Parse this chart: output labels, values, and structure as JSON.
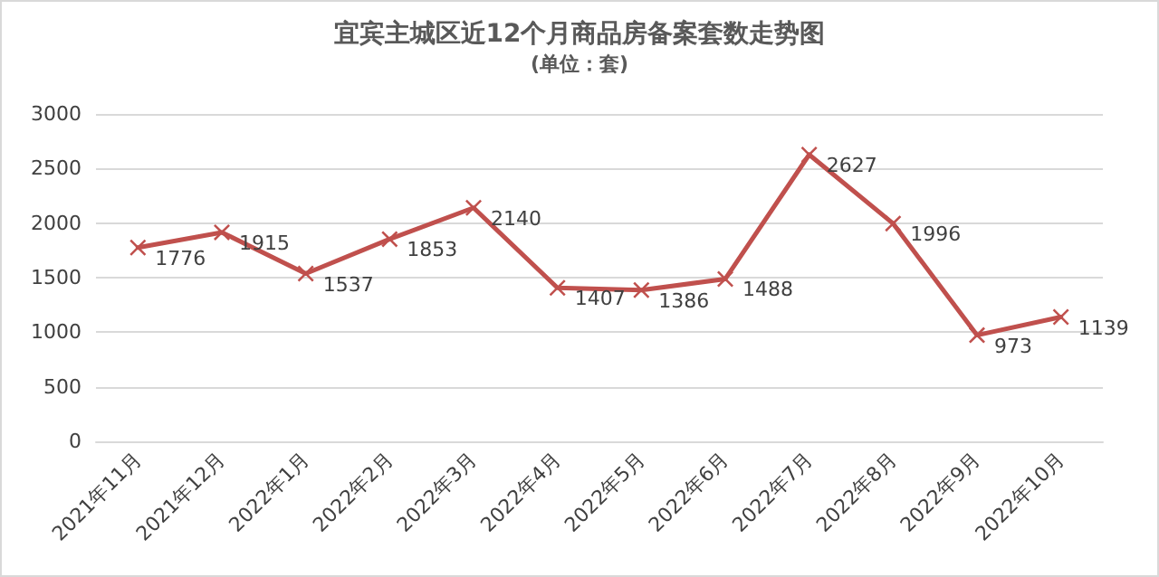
{
  "chart_data": {
    "type": "line",
    "title": "宜宾主城区近12个月商品房备案套数走势图",
    "subtitle": "(单位：套)",
    "categories": [
      "2021年11月",
      "2021年12月",
      "2022年1月",
      "2022年2月",
      "2022年3月",
      "2022年4月",
      "2022年5月",
      "2022年6月",
      "2022年7月",
      "2022年8月",
      "2022年9月",
      "2022年10月"
    ],
    "series": [
      {
        "color": "#c0504d",
        "values": [
          1776,
          1915,
          1537,
          1853,
          2140,
          1407,
          1386,
          1488,
          2627,
          1996,
          973,
          1139
        ]
      }
    ],
    "ylim": [
      0,
      3000
    ],
    "yticks": [
      0,
      500,
      1000,
      1500,
      2000,
      2500,
      3000
    ],
    "grid": "y",
    "marker": "cross",
    "line_style": "solid",
    "data_labels": true
  }
}
